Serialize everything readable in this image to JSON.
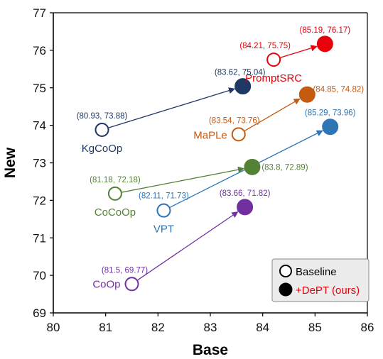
{
  "chart_data": {
    "type": "scatter",
    "xlabel": "Base",
    "ylabel": "New",
    "xlim": [
      80,
      86
    ],
    "ylim": [
      69,
      77
    ],
    "xticks": [
      80,
      81,
      82,
      83,
      84,
      85,
      86
    ],
    "yticks": [
      69,
      70,
      71,
      72,
      73,
      74,
      75,
      76,
      77
    ],
    "grid": false,
    "legend_position": "bottom-right",
    "legend": [
      {
        "label": "Baseline",
        "style": "hollow"
      },
      {
        "label": "+DePT (ours)",
        "style": "filled",
        "color": "#e8000b"
      }
    ],
    "series": [
      {
        "name": "KgCoOp",
        "color": "#1f3864",
        "baseline": {
          "x": 80.93,
          "y": 73.88,
          "label": "(80.93, 73.88)"
        },
        "dept": {
          "x": 83.62,
          "y": 75.04,
          "label": "(83.62, 75.04)"
        }
      },
      {
        "name": "PromptSRC",
        "color": "#e8000b",
        "baseline": {
          "x": 84.21,
          "y": 75.75,
          "label": "(84.21, 75.75)"
        },
        "dept": {
          "x": 85.19,
          "y": 76.17,
          "label": "(85.19, 76.17)"
        }
      },
      {
        "name": "MaPLe",
        "color": "#c55a11",
        "baseline": {
          "x": 83.54,
          "y": 73.76,
          "label": "(83.54, 73.76)"
        },
        "dept": {
          "x": 84.85,
          "y": 74.82,
          "label": "(84.85, 74.82)"
        }
      },
      {
        "name": "CoCoOp",
        "color": "#548235",
        "baseline": {
          "x": 81.18,
          "y": 72.18,
          "label": "(81.18, 72.18)"
        },
        "dept": {
          "x": 83.8,
          "y": 72.89,
          "label": "(83.8, 72.89)"
        }
      },
      {
        "name": "VPT",
        "color": "#2e75b6",
        "baseline": {
          "x": 82.11,
          "y": 71.73,
          "label": "(82.11, 71.73)"
        },
        "dept": {
          "x": 85.29,
          "y": 73.96,
          "label": "(85.29, 73.96)"
        }
      },
      {
        "name": "CoOp",
        "color": "#7030a0",
        "baseline": {
          "x": 81.5,
          "y": 69.77,
          "label": "(81.5, 69.77)"
        },
        "dept": {
          "x": 83.66,
          "y": 71.82,
          "label": "(83.66, 71.82)"
        }
      }
    ]
  }
}
